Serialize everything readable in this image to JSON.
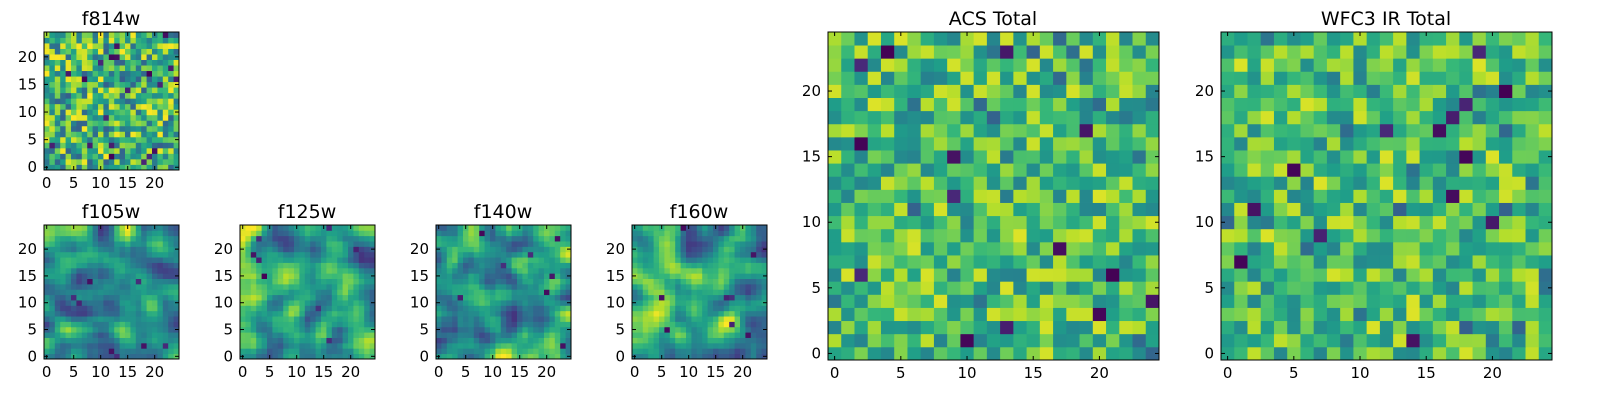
{
  "chart_data": [
    {
      "id": "f814w",
      "type": "heatmap",
      "title": "f814w",
      "grid_size": 25,
      "pattern": "noisy",
      "seed": 11,
      "xticks": [
        0,
        5,
        10,
        15,
        20
      ],
      "yticks": [
        0,
        5,
        10,
        15,
        20
      ],
      "xlim": [
        -0.5,
        24.5
      ],
      "ylim": [
        -0.5,
        24.5
      ],
      "colormap": "viridis"
    },
    {
      "id": "f105w",
      "type": "heatmap",
      "title": "f105w",
      "grid_size": 25,
      "pattern": "smooth",
      "seed": 23,
      "xticks": [
        0,
        5,
        10,
        15,
        20
      ],
      "yticks": [
        0,
        5,
        10,
        15,
        20
      ],
      "xlim": [
        -0.5,
        24.5
      ],
      "ylim": [
        -0.5,
        24.5
      ],
      "colormap": "viridis"
    },
    {
      "id": "f125w",
      "type": "heatmap",
      "title": "f125w",
      "grid_size": 25,
      "pattern": "smooth",
      "seed": 37,
      "xticks": [
        0,
        5,
        10,
        15,
        20
      ],
      "yticks": [
        0,
        5,
        10,
        15,
        20
      ],
      "xlim": [
        -0.5,
        24.5
      ],
      "ylim": [
        -0.5,
        24.5
      ],
      "colormap": "viridis"
    },
    {
      "id": "f140w",
      "type": "heatmap",
      "title": "f140w",
      "grid_size": 25,
      "pattern": "smooth",
      "seed": 41,
      "xticks": [
        0,
        5,
        10,
        15,
        20
      ],
      "yticks": [
        0,
        5,
        10,
        15,
        20
      ],
      "xlim": [
        -0.5,
        24.5
      ],
      "ylim": [
        -0.5,
        24.5
      ],
      "colormap": "viridis"
    },
    {
      "id": "f160w",
      "type": "heatmap",
      "title": "f160w",
      "grid_size": 25,
      "pattern": "smooth",
      "seed": 53,
      "xticks": [
        0,
        5,
        10,
        15,
        20
      ],
      "yticks": [
        0,
        5,
        10,
        15,
        20
      ],
      "xlim": [
        -0.5,
        24.5
      ],
      "ylim": [
        -0.5,
        24.5
      ],
      "colormap": "viridis"
    },
    {
      "id": "acs-total",
      "type": "heatmap",
      "title": "ACS Total",
      "grid_size": 25,
      "pattern": "blocky",
      "seed": 67,
      "xticks": [
        0,
        5,
        10,
        15,
        20
      ],
      "yticks": [
        0,
        5,
        10,
        15,
        20
      ],
      "xlim": [
        -0.5,
        24.5
      ],
      "ylim": [
        -0.5,
        24.5
      ],
      "colormap": "viridis"
    },
    {
      "id": "wfc3-ir-total",
      "type": "heatmap",
      "title": "WFC3 IR Total",
      "grid_size": 25,
      "pattern": "blocky",
      "seed": 79,
      "xticks": [
        0,
        5,
        10,
        15,
        20
      ],
      "yticks": [
        0,
        5,
        10,
        15,
        20
      ],
      "xlim": [
        -0.5,
        24.5
      ],
      "ylim": [
        -0.5,
        24.5
      ],
      "colormap": "viridis"
    }
  ]
}
